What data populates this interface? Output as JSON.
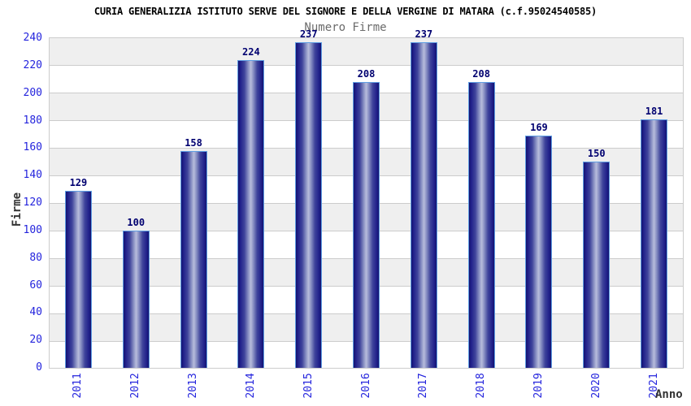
{
  "chart_data": {
    "type": "bar",
    "title": "CURIA GENERALIZIA ISTITUTO SERVE DEL SIGNORE E DELLA VERGINE DI MATARA (c.f.95024540585)",
    "subtitle": "Numero Firme",
    "categories": [
      "2011",
      "2012",
      "2013",
      "2014",
      "2015",
      "2016",
      "2017",
      "2018",
      "2019",
      "2020",
      "2021"
    ],
    "values": [
      129,
      100,
      158,
      224,
      237,
      208,
      237,
      208,
      169,
      150,
      181
    ],
    "xlabel": "Anno",
    "ylabel": "Firme",
    "ylim": [
      0,
      240
    ],
    "ytick_step": 20,
    "grid": "horizontal gridlines every 20 with alternating gray/white bands",
    "legend_position": "none",
    "bar_value_labels": true,
    "x_tick_rotation": -90
  },
  "colors": {
    "title_color": "#000000",
    "subtitle_color": "#6b6b6b",
    "tick_label_color": "#2424dd",
    "value_label_color": "#000070",
    "axis_title_color": "#333333",
    "bar_edge": "#14146e",
    "bar_highlight": "#b8bddc",
    "bar_border": "#5f9ee3",
    "band_gray": "#efefef",
    "band_white": "#ffffff",
    "gridline_color": "#cccccc"
  }
}
